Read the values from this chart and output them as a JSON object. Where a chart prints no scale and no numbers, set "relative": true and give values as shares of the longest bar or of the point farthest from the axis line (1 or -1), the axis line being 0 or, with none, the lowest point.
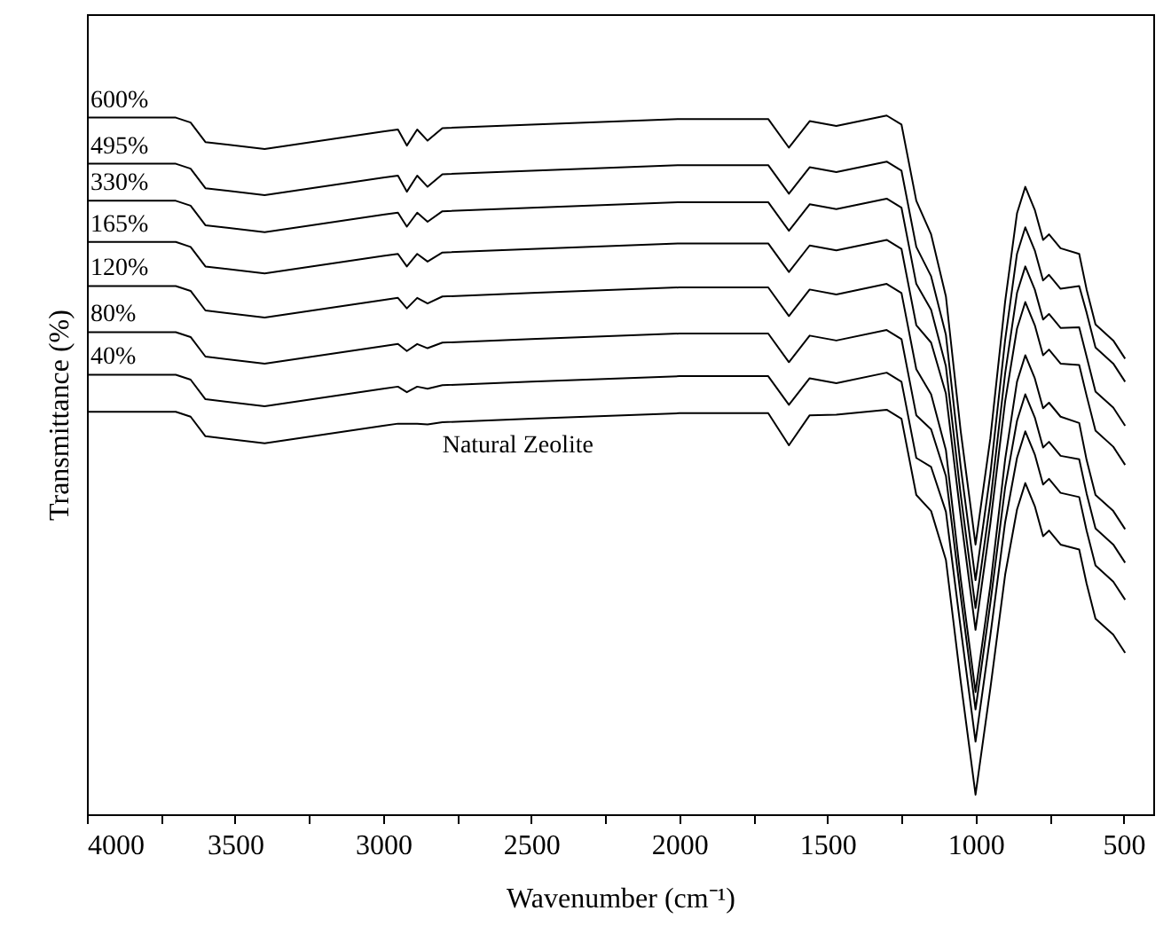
{
  "chart_data": {
    "type": "line",
    "xlabel": "Wavenumber (cm⁻¹)",
    "ylabel": "Transmittance (%)",
    "relative": true,
    "line_style": "solid",
    "grid": false,
    "x": [
      4000,
      3700,
      3650,
      3600,
      3400,
      3000,
      2950,
      2920,
      2885,
      2850,
      2800,
      2500,
      2000,
      1700,
      1630,
      1560,
      1470,
      1300,
      1250,
      1200,
      1150,
      1100,
      1050,
      1000,
      950,
      900,
      860,
      832,
      800,
      772,
      752,
      713,
      650,
      625,
      595,
      535,
      495
    ],
    "xlim": [
      4000,
      400
    ],
    "xticks": [
      4000,
      {
        "value": 3750,
        "label": null
      },
      3500,
      {
        "value": 3250,
        "label": null
      },
      3000,
      {
        "value": 2750,
        "label": null
      },
      2500,
      {
        "value": 2250,
        "label": null
      },
      2000,
      {
        "value": 1750,
        "label": null
      },
      1500,
      {
        "value": 1250,
        "label": null
      },
      1000,
      {
        "value": 750,
        "label": null
      },
      500
    ],
    "series": [
      {
        "name": "600%",
        "color": "#000000",
        "values": [
          0.997,
          0.997,
          0.99,
          0.962,
          0.952,
          0.977,
          0.98,
          0.957,
          0.98,
          0.964,
          0.982,
          0.987,
          0.995,
          0.995,
          0.954,
          0.992,
          0.985,
          1.0,
          0.987,
          0.878,
          0.83,
          0.741,
          0.548,
          0.386,
          0.538,
          0.734,
          0.86,
          0.898,
          0.865,
          0.822,
          0.83,
          0.81,
          0.802,
          0.751,
          0.701,
          0.678,
          0.652
        ]
      },
      {
        "name": "495%",
        "color": "#000000",
        "values": [
          0.931,
          0.931,
          0.924,
          0.896,
          0.886,
          0.911,
          0.914,
          0.891,
          0.914,
          0.898,
          0.916,
          0.921,
          0.929,
          0.929,
          0.888,
          0.926,
          0.919,
          0.934,
          0.921,
          0.812,
          0.77,
          0.686,
          0.497,
          0.335,
          0.487,
          0.679,
          0.802,
          0.84,
          0.807,
          0.764,
          0.772,
          0.752,
          0.756,
          0.718,
          0.668,
          0.645,
          0.619
        ]
      },
      {
        "name": "330%",
        "color": "#000000",
        "values": [
          0.878,
          0.878,
          0.871,
          0.843,
          0.833,
          0.858,
          0.861,
          0.841,
          0.861,
          0.848,
          0.863,
          0.868,
          0.876,
          0.876,
          0.835,
          0.873,
          0.866,
          0.881,
          0.868,
          0.759,
          0.722,
          0.641,
          0.457,
          0.295,
          0.447,
          0.631,
          0.746,
          0.784,
          0.751,
          0.708,
          0.716,
          0.696,
          0.697,
          0.655,
          0.605,
          0.582,
          0.556
        ]
      },
      {
        "name": "165%",
        "color": "#000000",
        "values": [
          0.819,
          0.819,
          0.812,
          0.784,
          0.774,
          0.799,
          0.802,
          0.784,
          0.802,
          0.791,
          0.804,
          0.809,
          0.817,
          0.817,
          0.776,
          0.814,
          0.807,
          0.822,
          0.809,
          0.7,
          0.675,
          0.602,
          0.426,
          0.264,
          0.416,
          0.591,
          0.695,
          0.733,
          0.7,
          0.657,
          0.665,
          0.645,
          0.643,
          0.599,
          0.549,
          0.526,
          0.5
        ]
      },
      {
        "name": "120%",
        "color": "#000000",
        "values": [
          0.756,
          0.756,
          0.749,
          0.721,
          0.711,
          0.736,
          0.739,
          0.724,
          0.739,
          0.731,
          0.741,
          0.746,
          0.754,
          0.754,
          0.713,
          0.751,
          0.744,
          0.759,
          0.746,
          0.637,
          0.601,
          0.521,
          0.337,
          0.175,
          0.327,
          0.508,
          0.619,
          0.657,
          0.624,
          0.581,
          0.589,
          0.569,
          0.56,
          0.507,
          0.457,
          0.434,
          0.408
        ]
      },
      {
        "name": "80%",
        "color": "#000000",
        "values": [
          0.69,
          0.69,
          0.683,
          0.655,
          0.645,
          0.67,
          0.673,
          0.663,
          0.673,
          0.667,
          0.675,
          0.68,
          0.688,
          0.688,
          0.647,
          0.685,
          0.678,
          0.693,
          0.68,
          0.571,
          0.551,
          0.484,
          0.312,
          0.15,
          0.302,
          0.468,
          0.563,
          0.601,
          0.568,
          0.525,
          0.533,
          0.513,
          0.508,
          0.459,
          0.409,
          0.386,
          0.36
        ]
      },
      {
        "name": "40%",
        "color": "#000000",
        "values": [
          0.629,
          0.629,
          0.622,
          0.594,
          0.584,
          0.609,
          0.612,
          0.604,
          0.612,
          0.609,
          0.614,
          0.619,
          0.627,
          0.627,
          0.586,
          0.624,
          0.617,
          0.632,
          0.619,
          0.51,
          0.497,
          0.433,
          0.266,
          0.104,
          0.256,
          0.418,
          0.51,
          0.548,
          0.515,
          0.472,
          0.48,
          0.46,
          0.454,
          0.406,
          0.356,
          0.333,
          0.307
        ]
      },
      {
        "name": "Natural Zeolite",
        "color": "#000000",
        "values": [
          0.576,
          0.576,
          0.569,
          0.541,
          0.531,
          0.556,
          0.559,
          0.559,
          0.559,
          0.558,
          0.561,
          0.566,
          0.574,
          0.574,
          0.528,
          0.571,
          0.572,
          0.579,
          0.566,
          0.457,
          0.434,
          0.364,
          0.19,
          0.028,
          0.18,
          0.343,
          0.436,
          0.474,
          0.441,
          0.398,
          0.406,
          0.386,
          0.379,
          0.33,
          0.28,
          0.257,
          0.231
        ]
      }
    ]
  }
}
